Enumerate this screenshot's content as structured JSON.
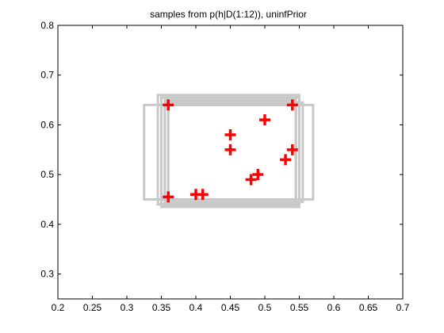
{
  "chart_data": {
    "type": "scatter",
    "title": "samples from p(h|D(1:12)), uninfPrior",
    "xlabel": "",
    "ylabel": "",
    "xlim": [
      0.2,
      0.7
    ],
    "ylim": [
      0.25,
      0.8
    ],
    "xticks": [
      "0.2",
      "0.25",
      "0.3",
      "0.35",
      "0.4",
      "0.45",
      "0.5",
      "0.55",
      "0.6",
      "0.65",
      "0.7"
    ],
    "yticks": [
      "0.3",
      "0.4",
      "0.5",
      "0.6",
      "0.7",
      "0.8"
    ],
    "grid": false,
    "colors": {
      "points": "#ff0000",
      "hypotheses": "#c8c8c8",
      "axes": "#000000"
    },
    "points": [
      {
        "x": 0.4,
        "y": 0.46
      },
      {
        "x": 0.41,
        "y": 0.46
      },
      {
        "x": 0.45,
        "y": 0.58
      },
      {
        "x": 0.45,
        "y": 0.55
      },
      {
        "x": 0.48,
        "y": 0.49
      },
      {
        "x": 0.49,
        "y": 0.5
      },
      {
        "x": 0.5,
        "y": 0.61
      },
      {
        "x": 0.53,
        "y": 0.53
      },
      {
        "x": 0.54,
        "y": 0.55
      },
      {
        "x": 0.36,
        "y": 0.64
      },
      {
        "x": 0.36,
        "y": 0.455
      },
      {
        "x": 0.54,
        "y": 0.64
      }
    ],
    "hypotheses": [
      {
        "x1": 0.325,
        "x2": 0.57,
        "y1": 0.45,
        "y2": 0.64
      },
      {
        "x1": 0.36,
        "x2": 0.545,
        "y1": 0.45,
        "y2": 0.645
      },
      {
        "x1": 0.355,
        "x2": 0.545,
        "y1": 0.44,
        "y2": 0.65
      },
      {
        "x1": 0.35,
        "x2": 0.55,
        "y1": 0.435,
        "y2": 0.655
      },
      {
        "x1": 0.345,
        "x2": 0.55,
        "y1": 0.44,
        "y2": 0.66
      },
      {
        "x1": 0.355,
        "x2": 0.555,
        "y1": 0.445,
        "y2": 0.645
      },
      {
        "x1": 0.36,
        "x2": 0.55,
        "y1": 0.45,
        "y2": 0.64
      },
      {
        "x1": 0.35,
        "x2": 0.545,
        "y1": 0.44,
        "y2": 0.655
      }
    ]
  }
}
